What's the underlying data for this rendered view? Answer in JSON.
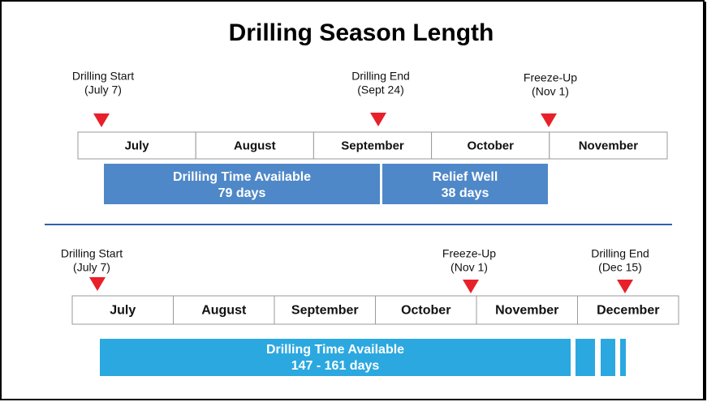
{
  "title": "Drilling Season Length",
  "top": {
    "markers": [
      {
        "label": "Drilling Start",
        "date": "(July 7)"
      },
      {
        "label": "Drilling End",
        "date": "(Sept 24)"
      },
      {
        "label": "Freeze-Up",
        "date": "(Nov 1)"
      }
    ],
    "months": [
      "July",
      "August",
      "September",
      "October",
      "November"
    ],
    "bars": [
      {
        "label": "Drilling Time Available",
        "duration": "79 days"
      },
      {
        "label": "Relief Well",
        "duration": "38 days"
      }
    ]
  },
  "bottom": {
    "markers": [
      {
        "label": "Drilling Start",
        "date": "(July 7)"
      },
      {
        "label": "Freeze-Up",
        "date": "(Nov 1)"
      },
      {
        "label": "Drilling End",
        "date": "(Dec 15)"
      }
    ],
    "months": [
      "July",
      "August",
      "September",
      "October",
      "November",
      "December"
    ],
    "bars": [
      {
        "label": "Drilling Time Available",
        "duration": "147 - 161 days"
      }
    ]
  }
}
